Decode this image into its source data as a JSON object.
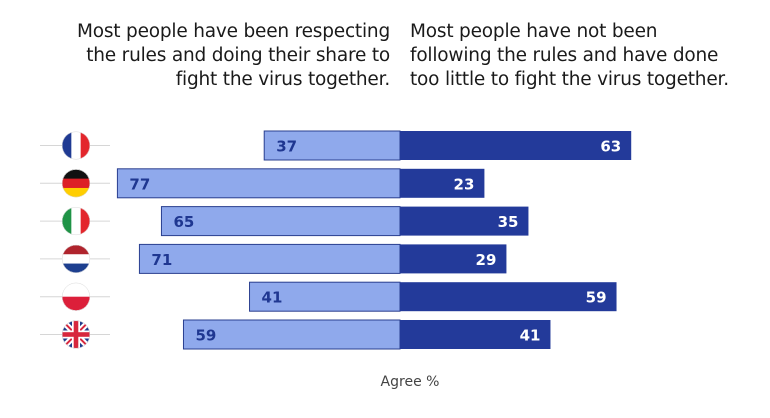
{
  "chart_data": {
    "type": "bar",
    "subtype": "diverging",
    "left_header": "Most people have been respecting\nthe rules and doing their share to\nfight the virus together.",
    "right_header": "Most people have not been\nfollowing the rules and have done\ntoo little to fight the virus together.",
    "categories": [
      "France",
      "Germany",
      "Italy",
      "Netherlands",
      "Poland",
      "United Kingdom"
    ],
    "category_icons": [
      "flag-france-icon",
      "flag-germany-icon",
      "flag-italy-icon",
      "flag-netherlands-icon",
      "flag-poland-icon",
      "flag-uk-icon"
    ],
    "series": [
      {
        "values": [
          37,
          77,
          65,
          71,
          41,
          59
        ],
        "color": "#8fa9ec",
        "label_color": "#1f3791"
      },
      {
        "values": [
          63,
          23,
          35,
          29,
          59,
          41
        ],
        "color": "#233a9a",
        "label_color": "#ffffff"
      }
    ],
    "xlabel": "Agree %",
    "grid": false
  }
}
